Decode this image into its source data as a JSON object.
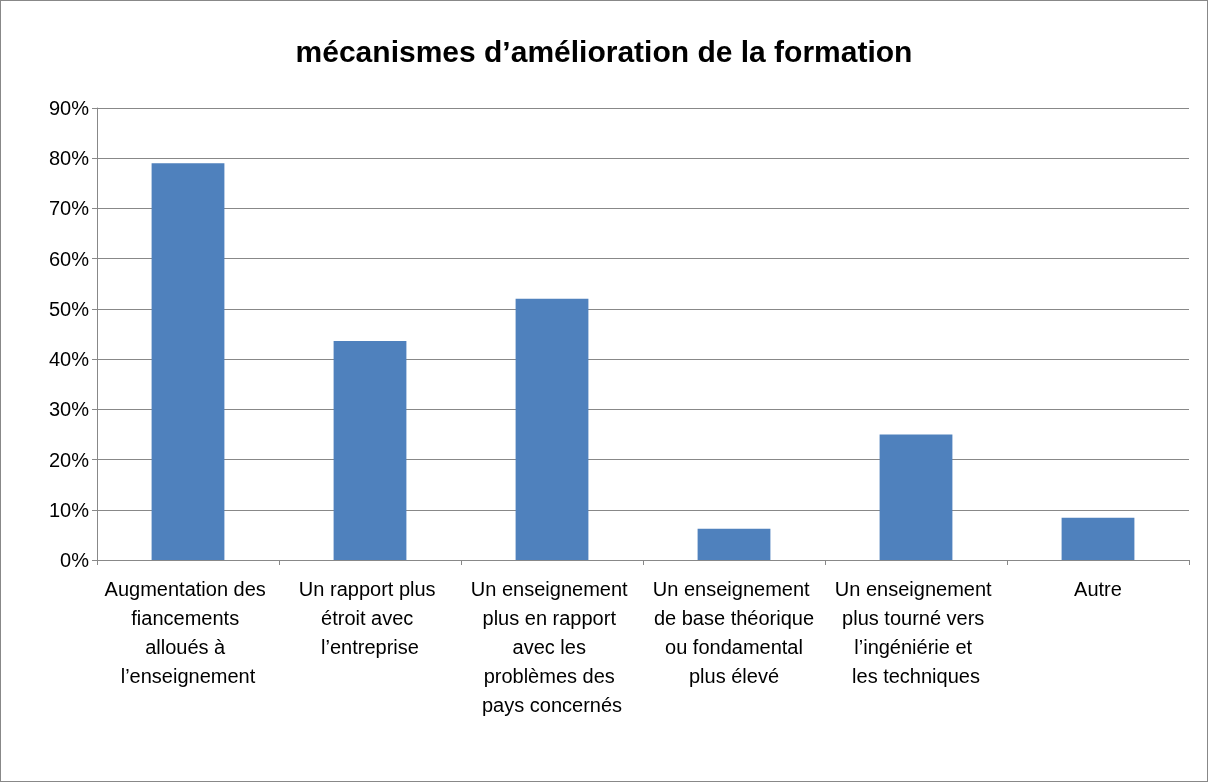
{
  "chart_data": {
    "type": "bar",
    "title": "mécanismes d’amélioration de la formation",
    "categories": [
      "Augmentation des fiancements alloués à l’enseignement",
      "Un rapport plus étroit avec l’entreprise",
      "Un enseignement plus en rapport avec les problèmes des pays concernés",
      "Un enseignement de base théorique ou fondamental plus élevé",
      "Un enseignement plus tourné vers l’ingéniérie et les techniques",
      "Autre"
    ],
    "values": [
      79,
      43.6,
      52,
      6.2,
      25,
      8.4
    ],
    "color": "#4f81bd",
    "ylim": [
      0,
      90
    ],
    "yticks": [
      {
        "value": 0,
        "label": "0%"
      },
      {
        "value": 10,
        "label": "10%"
      },
      {
        "value": 20,
        "label": "20%"
      },
      {
        "value": 30,
        "label": "30%"
      },
      {
        "value": 40,
        "label": "40%"
      },
      {
        "value": 50,
        "label": "50%"
      },
      {
        "value": 60,
        "label": "60%"
      },
      {
        "value": 70,
        "label": "70%"
      },
      {
        "value": 80,
        "label": "80%"
      },
      {
        "value": 90,
        "label": "90%"
      }
    ],
    "grid": "y"
  }
}
